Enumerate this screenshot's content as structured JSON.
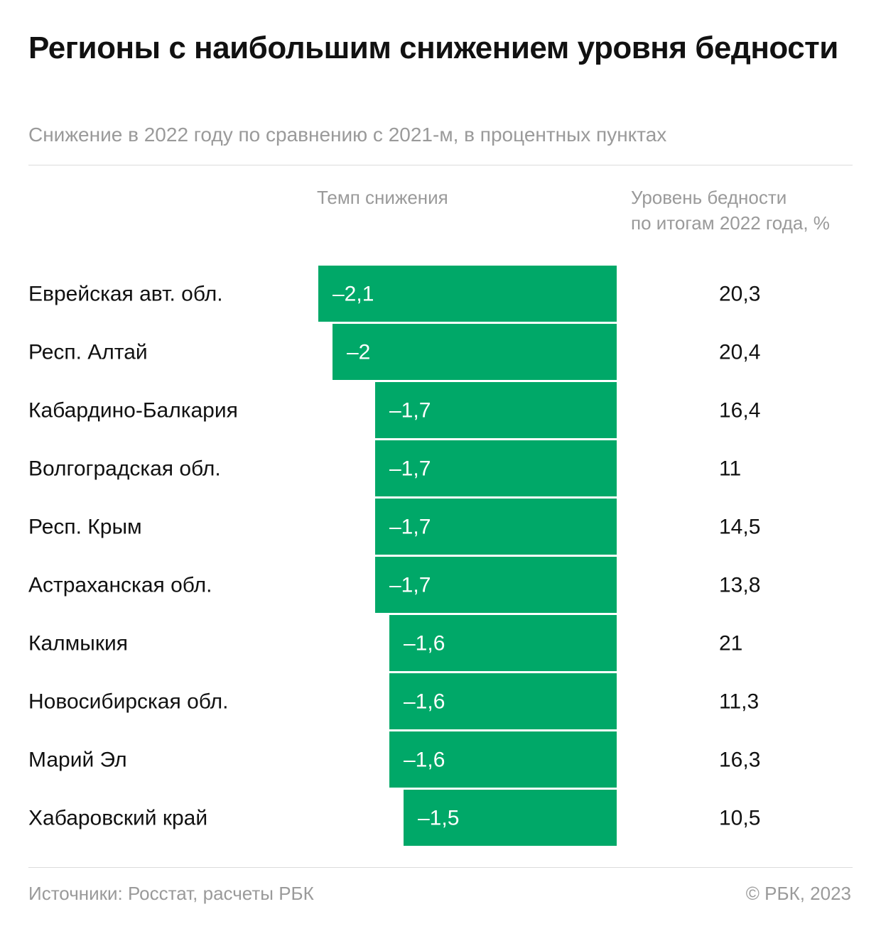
{
  "title": "Регионы с наибольшим снижением уровня бедности",
  "subtitle": "Снижение в 2022 году по сравнению с 2021-м, в процентных пунктах",
  "column_headers": {
    "bars": "Темп снижения",
    "level_line1": "Уровень бедности",
    "level_line2": "по итогам 2022 года, %"
  },
  "footer": {
    "source": "Источники: Росстат, расчеты РБК",
    "copyright": "© РБК, 2023"
  },
  "colors": {
    "bar": "#00a868",
    "bar_label": "#ffffff",
    "text": "#111111",
    "muted": "#9a9a9a"
  },
  "chart_data": {
    "type": "bar",
    "orientation": "horizontal",
    "categories": [
      "Еврейская авт. обл.",
      "Респ. Алтай",
      "Кабардино-Балкария",
      "Волгоградская обл.",
      "Респ. Крым",
      "Астраханская обл.",
      "Калмыкия",
      "Новосибирская обл.",
      "Марий Эл",
      "Хабаровский край"
    ],
    "series": [
      {
        "name": "Темп снижения",
        "values": [
          -2.1,
          -2.0,
          -1.7,
          -1.7,
          -1.7,
          -1.7,
          -1.6,
          -1.6,
          -1.6,
          -1.5
        ],
        "labels": [
          "–2,1",
          "–2",
          "–1,7",
          "–1,7",
          "–1,7",
          "–1,7",
          "–1,6",
          "–1,6",
          "–1,6",
          "–1,5"
        ]
      },
      {
        "name": "Уровень бедности по итогам 2022 года, %",
        "values": [
          20.3,
          20.4,
          16.4,
          11,
          14.5,
          13.8,
          21,
          11.3,
          16.3,
          10.5
        ],
        "labels": [
          "20,3",
          "20,4",
          "16,4",
          "11",
          "14,5",
          "13,8",
          "21",
          "11,3",
          "16,3",
          "10,5"
        ]
      }
    ],
    "grid": false,
    "legend": "none"
  }
}
